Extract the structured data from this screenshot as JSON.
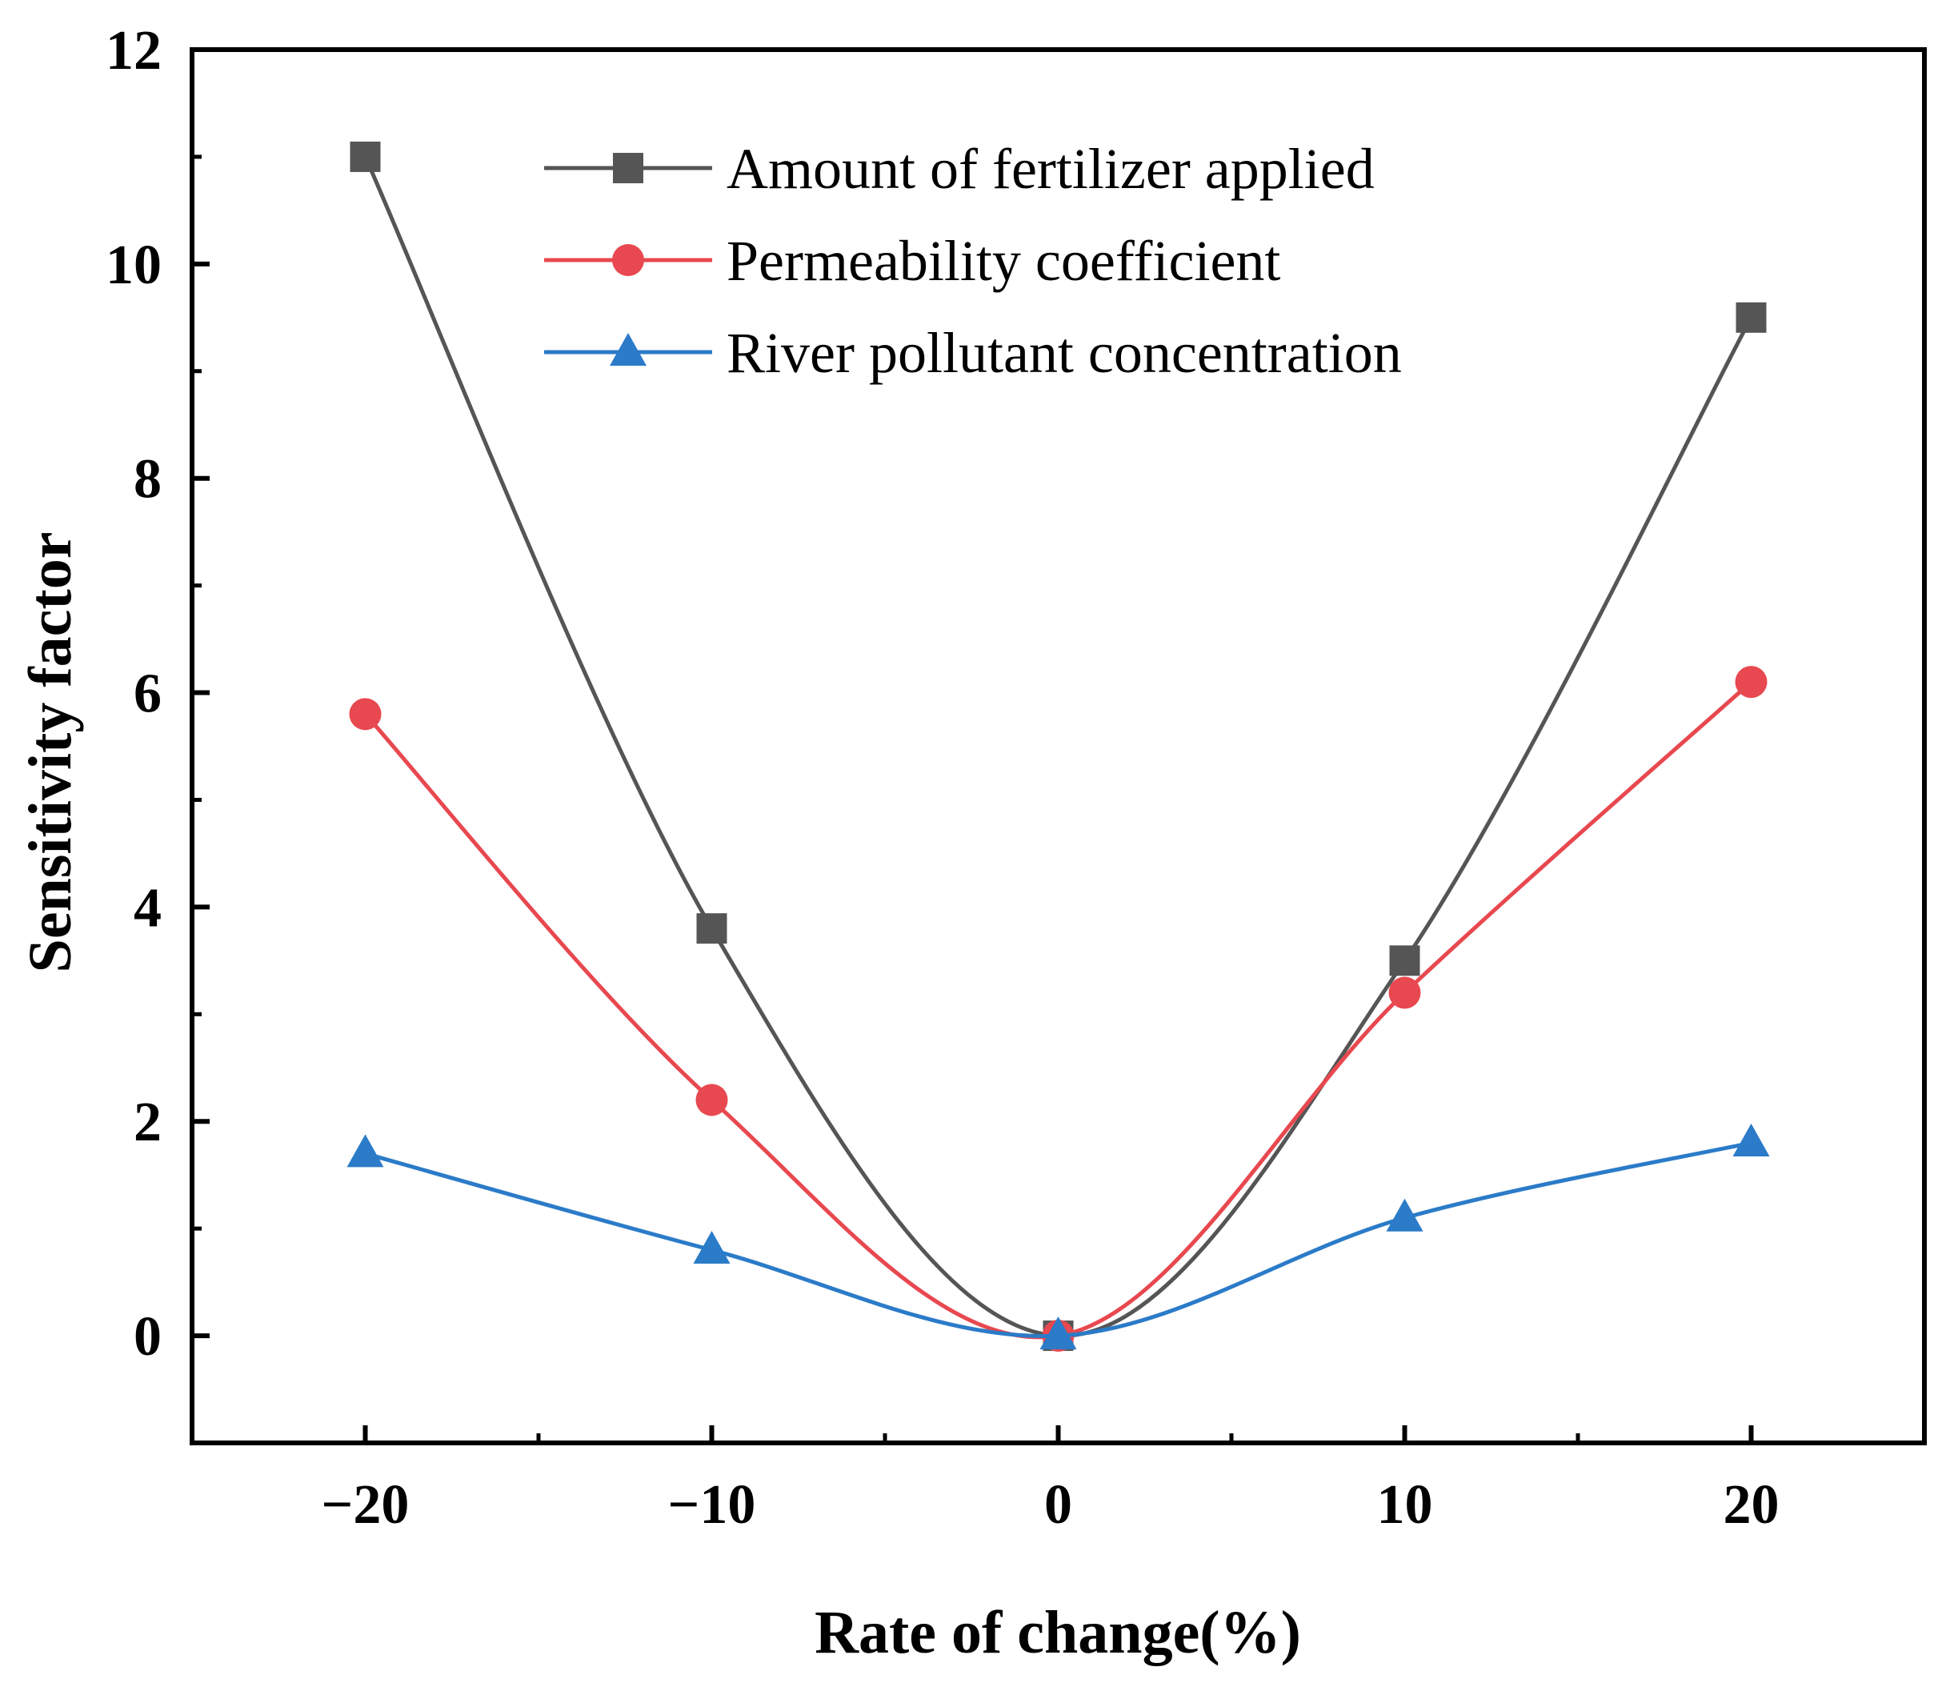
{
  "chart_data": {
    "type": "line",
    "title": "",
    "xlabel": "Rate of change(%)",
    "ylabel": "Sensitivity factor",
    "x": [
      -20,
      -10,
      0,
      10,
      20
    ],
    "x_tick_values": [
      -20,
      -10,
      0,
      10,
      20
    ],
    "x_tick_labels": [
      "−20",
      "−10",
      "0",
      "10",
      "20"
    ],
    "y_tick_values": [
      0,
      2,
      4,
      6,
      8,
      10,
      12
    ],
    "y_tick_labels": [
      "0",
      "2",
      "4",
      "6",
      "8",
      "10",
      "12"
    ],
    "xlim": [
      -25,
      25
    ],
    "ylim": [
      -1,
      12
    ],
    "grid": false,
    "legend_position": "top-center",
    "series": [
      {
        "name": "Amount of fertilizer applied",
        "marker": "square",
        "color": "#555555",
        "values": [
          11.0,
          3.8,
          0.0,
          3.5,
          9.5
        ]
      },
      {
        "name": "Permeability coefficient",
        "marker": "circle",
        "color": "#e8484f",
        "values": [
          5.8,
          2.2,
          0.0,
          3.2,
          6.1
        ]
      },
      {
        "name": "River pollutant concentration",
        "marker": "triangle",
        "color": "#2b7bc8",
        "values": [
          1.7,
          0.8,
          0.0,
          1.1,
          1.8
        ]
      }
    ]
  }
}
